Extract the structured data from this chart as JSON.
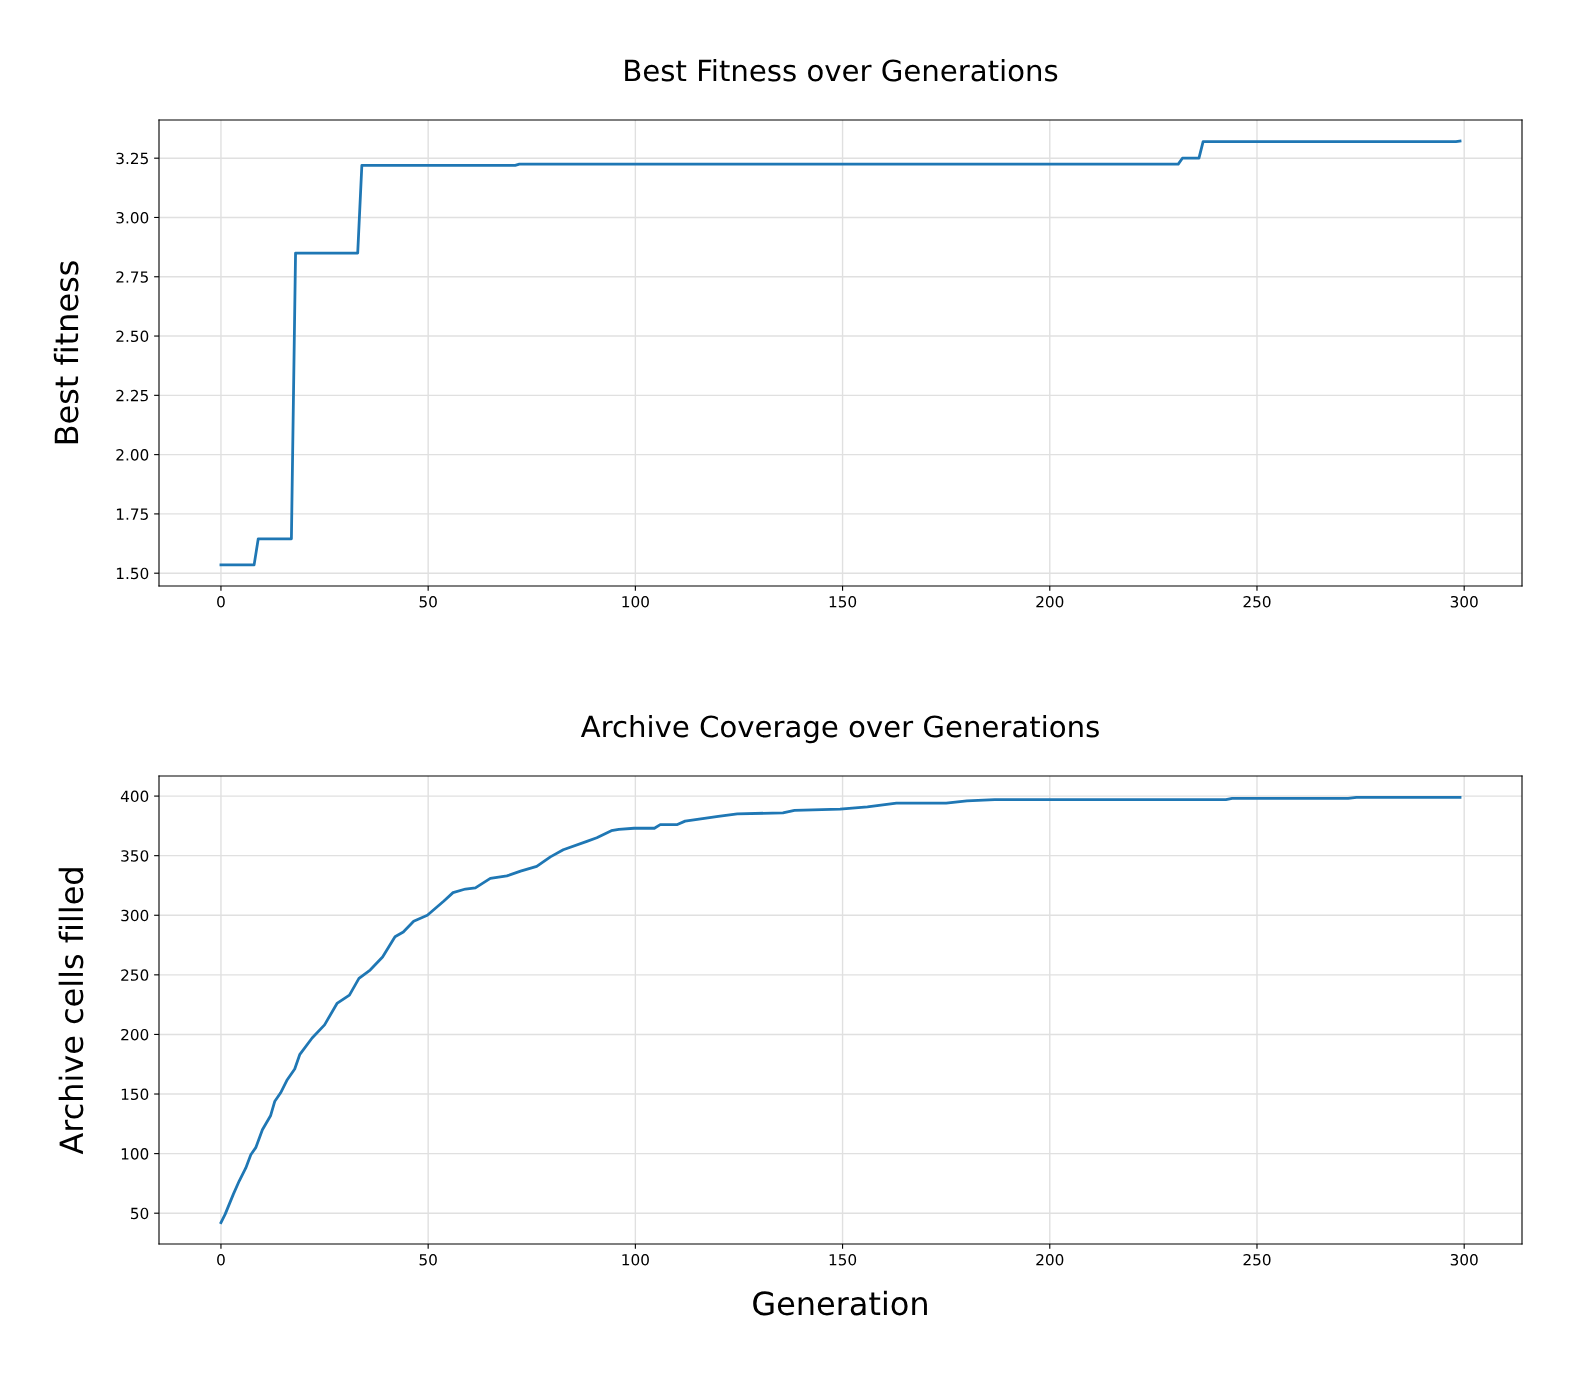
{
  "chart_data": [
    {
      "type": "line",
      "title": "Best Fitness over Generations",
      "ylabel": "Best fitness",
      "series": [
        {
          "color": "#1f77b4",
          "x": [
            0,
            8,
            9,
            17,
            18,
            33,
            34,
            71,
            72,
            231,
            232,
            236,
            237,
            298,
            299
          ],
          "values": [
            1.535,
            1.535,
            1.645,
            1.645,
            2.85,
            2.85,
            3.22,
            3.22,
            3.225,
            3.225,
            3.25,
            3.25,
            3.32,
            3.32,
            3.322
          ]
        }
      ],
      "xlim": [
        -14.95,
        313.95
      ],
      "xticks": [
        0,
        50,
        100,
        150,
        200,
        250,
        300
      ],
      "ylim": [
        1.446,
        3.411
      ],
      "yticks": [
        {
          "value": 1.5,
          "label": "1.50"
        },
        {
          "value": 1.75,
          "label": "1.75"
        },
        {
          "value": 2.0,
          "label": "2.00"
        },
        {
          "value": 2.25,
          "label": "2.25"
        },
        {
          "value": 2.5,
          "label": "2.50"
        },
        {
          "value": 2.75,
          "label": "2.75"
        },
        {
          "value": 3.0,
          "label": "3.00"
        },
        {
          "value": 3.25,
          "label": "3.25"
        }
      ],
      "grid": true,
      "marker": "none",
      "line_style": "solid"
    },
    {
      "type": "line",
      "title": "Archive Coverage over Generations",
      "xlabel": "Generation",
      "ylabel": "Archive cells filled",
      "series": [
        {
          "color": "#1f77b4",
          "x": [
            0,
            1,
            3,
            4.4,
            6,
            7.2,
            8.4,
            10,
            12,
            13,
            14.4,
            16,
            17.8,
            19,
            22,
            25,
            28,
            31,
            33.3,
            36,
            39,
            42,
            44,
            46.5,
            49.8,
            53.8,
            56,
            59,
            61.4,
            65,
            69,
            72.3,
            76.2,
            79.5,
            82.6,
            88.3,
            90.7,
            94.2,
            96,
            99.7,
            104.6,
            106,
            110,
            112,
            120,
            124.6,
            135.6,
            138.4,
            149.4,
            156,
            163,
            175,
            180,
            186.7,
            242.5,
            244,
            272,
            274,
            299
          ],
          "values": [
            42,
            49,
            66,
            77,
            88,
            99,
            105,
            120,
            132,
            144,
            151,
            162,
            171,
            183,
            197,
            208,
            226,
            233,
            247,
            254,
            265,
            282,
            286,
            295,
            300,
            312,
            319,
            322,
            323,
            331,
            333,
            337,
            341,
            349,
            355,
            362,
            365,
            371,
            372,
            373,
            373,
            376,
            376,
            379,
            383,
            385,
            386,
            388,
            389,
            391,
            394,
            394,
            396,
            397,
            397,
            398,
            398,
            399,
            399
          ]
        }
      ],
      "xlim": [
        -14.95,
        313.95
      ],
      "xticks": [
        0,
        50,
        100,
        150,
        200,
        250,
        300
      ],
      "ylim": [
        24.15,
        416.85
      ],
      "yticks": [
        50,
        100,
        150,
        200,
        250,
        300,
        350,
        400
      ],
      "grid": true,
      "marker": "none",
      "line_style": "solid"
    }
  ]
}
